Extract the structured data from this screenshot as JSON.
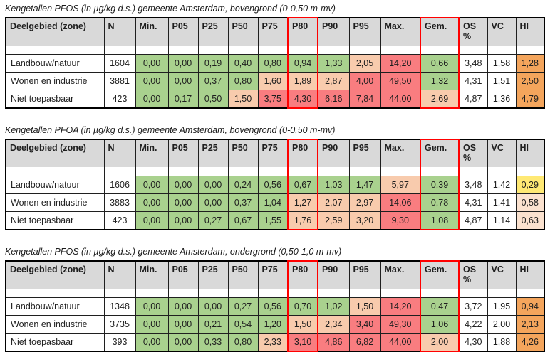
{
  "colors": {
    "header_bg": "#D9D9D9",
    "highlight_border": "#FF0000",
    "white": "#FFFFFF",
    "green": "#A9D18E",
    "peach": "#F8CBAD",
    "red": "#F97D80",
    "orange": "#F4A55C",
    "pale": "#FBE2CF",
    "yellow": "#FFE974"
  },
  "columns": [
    {
      "key": "zone",
      "label": "Deelgebied (zone)"
    },
    {
      "key": "n",
      "label": "N"
    },
    {
      "key": "min",
      "label": "Min."
    },
    {
      "key": "p05",
      "label": "P05"
    },
    {
      "key": "p25",
      "label": "P25"
    },
    {
      "key": "p50",
      "label": "P50"
    },
    {
      "key": "p75",
      "label": "P75"
    },
    {
      "key": "p80",
      "label": "P80",
      "highlighted": true
    },
    {
      "key": "p90",
      "label": "P90"
    },
    {
      "key": "p95",
      "label": "P95"
    },
    {
      "key": "max",
      "label": "Max."
    },
    {
      "key": "gem",
      "label": "Gem.",
      "highlighted": true
    },
    {
      "key": "os",
      "label": "OS\n%"
    },
    {
      "key": "vc",
      "label": "VC"
    },
    {
      "key": "hi",
      "label": "HI"
    }
  ],
  "tables": [
    {
      "title": "Kengetallen PFOS (in µg/kg d.s.) gemeente Amsterdam, bovengrond (0-0,50 m-mv)",
      "rows": [
        {
          "cells": [
            {
              "v": "Landbouw/natuur",
              "c": "white"
            },
            {
              "v": "1604",
              "c": "white"
            },
            {
              "v": "0,00",
              "c": "green"
            },
            {
              "v": "0,00",
              "c": "green"
            },
            {
              "v": "0,19",
              "c": "green"
            },
            {
              "v": "0,40",
              "c": "green"
            },
            {
              "v": "0,80",
              "c": "green"
            },
            {
              "v": "0,94",
              "c": "green"
            },
            {
              "v": "1,33",
              "c": "green"
            },
            {
              "v": "2,05",
              "c": "peach"
            },
            {
              "v": "14,20",
              "c": "red"
            },
            {
              "v": "0,66",
              "c": "green"
            },
            {
              "v": "3,48",
              "c": "white"
            },
            {
              "v": "1,58",
              "c": "white"
            },
            {
              "v": "1,28",
              "c": "orange"
            }
          ]
        },
        {
          "cells": [
            {
              "v": "Wonen en industrie",
              "c": "white"
            },
            {
              "v": "3881",
              "c": "white"
            },
            {
              "v": "0,00",
              "c": "green"
            },
            {
              "v": "0,00",
              "c": "green"
            },
            {
              "v": "0,37",
              "c": "green"
            },
            {
              "v": "0,80",
              "c": "green"
            },
            {
              "v": "1,60",
              "c": "peach"
            },
            {
              "v": "1,89",
              "c": "peach"
            },
            {
              "v": "2,87",
              "c": "peach"
            },
            {
              "v": "4,00",
              "c": "red"
            },
            {
              "v": "49,50",
              "c": "red"
            },
            {
              "v": "1,32",
              "c": "green"
            },
            {
              "v": "4,31",
              "c": "white"
            },
            {
              "v": "1,51",
              "c": "white"
            },
            {
              "v": "2,50",
              "c": "orange"
            }
          ]
        },
        {
          "cells": [
            {
              "v": "Niet toepasbaar",
              "c": "white"
            },
            {
              "v": "423",
              "c": "white"
            },
            {
              "v": "0,00",
              "c": "green"
            },
            {
              "v": "0,17",
              "c": "green"
            },
            {
              "v": "0,50",
              "c": "green"
            },
            {
              "v": "1,50",
              "c": "peach"
            },
            {
              "v": "3,75",
              "c": "red"
            },
            {
              "v": "4,30",
              "c": "red"
            },
            {
              "v": "6,16",
              "c": "red"
            },
            {
              "v": "7,84",
              "c": "red"
            },
            {
              "v": "44,00",
              "c": "red"
            },
            {
              "v": "2,69",
              "c": "peach"
            },
            {
              "v": "4,87",
              "c": "white"
            },
            {
              "v": "1,36",
              "c": "white"
            },
            {
              "v": "4,79",
              "c": "orange"
            }
          ]
        }
      ]
    },
    {
      "title": "Kengetallen PFOA (in µg/kg d.s.) gemeente Amsterdam, bovengrond (0-0,50 m-mv)",
      "rows": [
        {
          "cells": [
            {
              "v": "Landbouw/natuur",
              "c": "white"
            },
            {
              "v": "1606",
              "c": "white"
            },
            {
              "v": "0,00",
              "c": "green"
            },
            {
              "v": "0,00",
              "c": "green"
            },
            {
              "v": "0,00",
              "c": "green"
            },
            {
              "v": "0,24",
              "c": "green"
            },
            {
              "v": "0,56",
              "c": "green"
            },
            {
              "v": "0,67",
              "c": "green"
            },
            {
              "v": "1,03",
              "c": "green"
            },
            {
              "v": "1,47",
              "c": "green"
            },
            {
              "v": "5,97",
              "c": "peach"
            },
            {
              "v": "0,39",
              "c": "green"
            },
            {
              "v": "3,48",
              "c": "white"
            },
            {
              "v": "1,42",
              "c": "white"
            },
            {
              "v": "0,29",
              "c": "yellow"
            }
          ]
        },
        {
          "cells": [
            {
              "v": "Wonen en industrie",
              "c": "white"
            },
            {
              "v": "3883",
              "c": "white"
            },
            {
              "v": "0,00",
              "c": "green"
            },
            {
              "v": "0,00",
              "c": "green"
            },
            {
              "v": "0,00",
              "c": "green"
            },
            {
              "v": "0,37",
              "c": "green"
            },
            {
              "v": "1,04",
              "c": "green"
            },
            {
              "v": "1,27",
              "c": "peach"
            },
            {
              "v": "2,07",
              "c": "peach"
            },
            {
              "v": "2,97",
              "c": "peach"
            },
            {
              "v": "14,06",
              "c": "red"
            },
            {
              "v": "0,78",
              "c": "green"
            },
            {
              "v": "4,31",
              "c": "white"
            },
            {
              "v": "1,41",
              "c": "white"
            },
            {
              "v": "0,58",
              "c": "pale"
            }
          ]
        },
        {
          "cells": [
            {
              "v": "Niet toepasbaar",
              "c": "white"
            },
            {
              "v": "423",
              "c": "white"
            },
            {
              "v": "0,00",
              "c": "green"
            },
            {
              "v": "0,00",
              "c": "green"
            },
            {
              "v": "0,27",
              "c": "green"
            },
            {
              "v": "0,67",
              "c": "green"
            },
            {
              "v": "1,55",
              "c": "green"
            },
            {
              "v": "1,76",
              "c": "peach"
            },
            {
              "v": "2,59",
              "c": "peach"
            },
            {
              "v": "3,20",
              "c": "peach"
            },
            {
              "v": "9,30",
              "c": "red"
            },
            {
              "v": "1,08",
              "c": "green"
            },
            {
              "v": "4,87",
              "c": "white"
            },
            {
              "v": "1,14",
              "c": "white"
            },
            {
              "v": "0,63",
              "c": "pale"
            }
          ]
        }
      ]
    },
    {
      "title": "Kengetallen PFOS (in µg/kg d.s.) gemeente Amsterdam, ondergrond (0,50-1,0 m-mv)",
      "rows": [
        {
          "cells": [
            {
              "v": "Landbouw/natuur",
              "c": "white"
            },
            {
              "v": "1348",
              "c": "white"
            },
            {
              "v": "0,00",
              "c": "green"
            },
            {
              "v": "0,00",
              "c": "green"
            },
            {
              "v": "0,00",
              "c": "green"
            },
            {
              "v": "0,27",
              "c": "green"
            },
            {
              "v": "0,56",
              "c": "green"
            },
            {
              "v": "0,70",
              "c": "green"
            },
            {
              "v": "1,02",
              "c": "green"
            },
            {
              "v": "1,50",
              "c": "peach"
            },
            {
              "v": "14,20",
              "c": "red"
            },
            {
              "v": "0,47",
              "c": "green"
            },
            {
              "v": "3,72",
              "c": "white"
            },
            {
              "v": "1,95",
              "c": "white"
            },
            {
              "v": "0,94",
              "c": "orange"
            }
          ]
        },
        {
          "cells": [
            {
              "v": "Wonen en industrie",
              "c": "white"
            },
            {
              "v": "3735",
              "c": "white"
            },
            {
              "v": "0,00",
              "c": "green"
            },
            {
              "v": "0,00",
              "c": "green"
            },
            {
              "v": "0,21",
              "c": "green"
            },
            {
              "v": "0,54",
              "c": "green"
            },
            {
              "v": "1,20",
              "c": "green"
            },
            {
              "v": "1,50",
              "c": "peach"
            },
            {
              "v": "2,34",
              "c": "peach"
            },
            {
              "v": "3,40",
              "c": "red"
            },
            {
              "v": "49,30",
              "c": "red"
            },
            {
              "v": "1,06",
              "c": "green"
            },
            {
              "v": "4,22",
              "c": "white"
            },
            {
              "v": "2,00",
              "c": "white"
            },
            {
              "v": "2,13",
              "c": "orange"
            }
          ]
        },
        {
          "cells": [
            {
              "v": "Niet toepasbaar",
              "c": "white"
            },
            {
              "v": "393",
              "c": "white"
            },
            {
              "v": "0,00",
              "c": "green"
            },
            {
              "v": "0,00",
              "c": "green"
            },
            {
              "v": "0,33",
              "c": "green"
            },
            {
              "v": "0,80",
              "c": "green"
            },
            {
              "v": "2,33",
              "c": "peach"
            },
            {
              "v": "3,10",
              "c": "red"
            },
            {
              "v": "4,86",
              "c": "red"
            },
            {
              "v": "6,82",
              "c": "red"
            },
            {
              "v": "44,00",
              "c": "red"
            },
            {
              "v": "2,00",
              "c": "peach"
            },
            {
              "v": "4,30",
              "c": "white"
            },
            {
              "v": "1,88",
              "c": "white"
            },
            {
              "v": "4,26",
              "c": "orange"
            }
          ]
        }
      ]
    }
  ]
}
